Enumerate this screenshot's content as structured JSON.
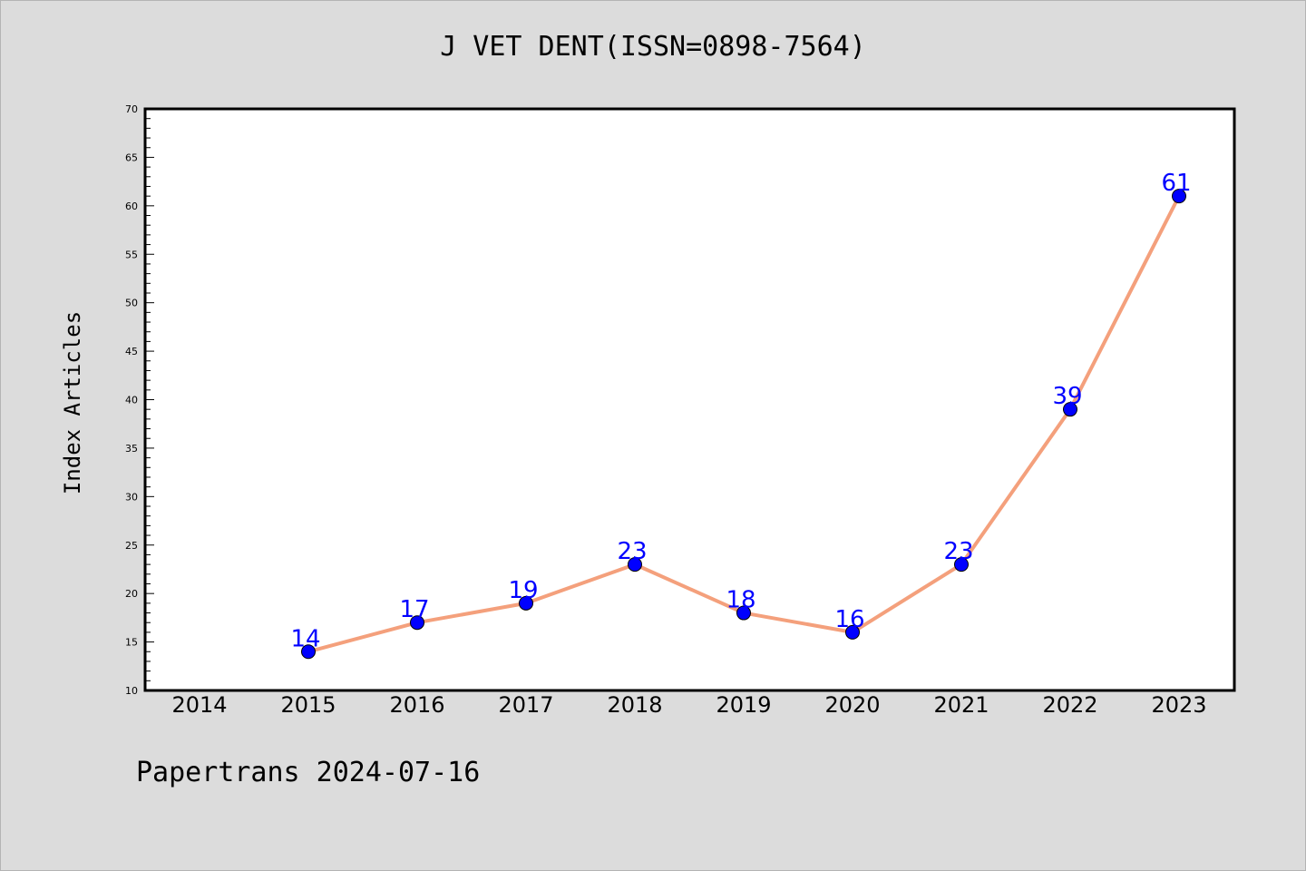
{
  "chart_data": {
    "type": "line",
    "title": "J VET DENT(ISSN=0898-7564)",
    "ylabel": "Index Articles",
    "xlabel": "",
    "x_ticks": [
      "2014",
      "2015",
      "2016",
      "2017",
      "2018",
      "2019",
      "2020",
      "2021",
      "2022",
      "2023"
    ],
    "x": [
      "2015",
      "2016",
      "2017",
      "2018",
      "2019",
      "2020",
      "2021",
      "2022",
      "2023"
    ],
    "values": [
      14,
      17,
      19,
      23,
      18,
      16,
      23,
      39,
      61
    ],
    "data_labels": [
      "14",
      "17",
      "19",
      "23",
      "18",
      "16",
      "23",
      "39",
      "61"
    ],
    "ylim": [
      10,
      70
    ],
    "y_ticks": [
      "10",
      "15",
      "20",
      "25",
      "30",
      "35",
      "40",
      "45",
      "50",
      "55",
      "60",
      "65",
      "70"
    ],
    "grid": false,
    "line_color": "#f4a07c",
    "marker_color": "#0000ff",
    "label_color": "#0000ff",
    "background_color": "#dcdcdc",
    "plot_background": "#ffffff"
  },
  "footer": "Papertrans 2024-07-16"
}
